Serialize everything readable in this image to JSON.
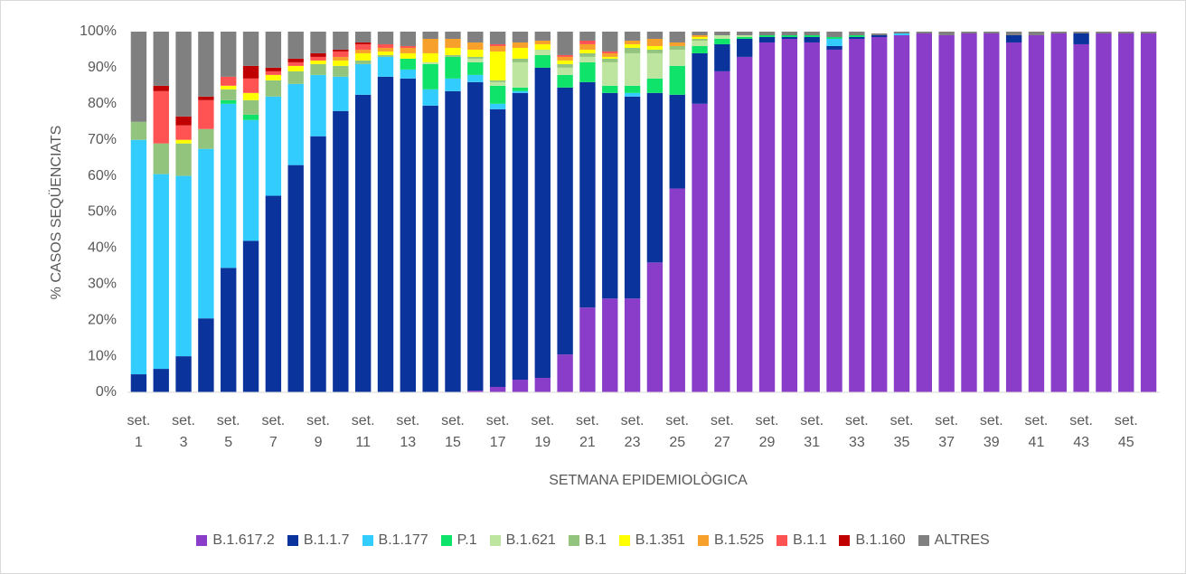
{
  "chart_data": {
    "type": "stacked_bar",
    "x_label": "SETMANA EPIDEMIOLÒGICA",
    "y_label": "% CASOS SEQÜENCIATS",
    "ylim": [
      0,
      100
    ],
    "yticks": [
      {
        "value": 0,
        "label": "0%"
      },
      {
        "value": 10,
        "label": "10%"
      },
      {
        "value": 20,
        "label": "20%"
      },
      {
        "value": 30,
        "label": "30%"
      },
      {
        "value": 40,
        "label": "40%"
      },
      {
        "value": 50,
        "label": "50%"
      },
      {
        "value": 60,
        "label": "60%"
      },
      {
        "value": 70,
        "label": "70%"
      },
      {
        "value": 80,
        "label": "80%"
      },
      {
        "value": 90,
        "label": "90%"
      },
      {
        "value": 100,
        "label": "100%"
      }
    ],
    "grid": false,
    "legend": "bottom",
    "categories": [
      "set. 1",
      null,
      "set. 3",
      null,
      "set. 5",
      null,
      "set. 7",
      null,
      "set. 9",
      null,
      "set. 11",
      null,
      "set. 13",
      null,
      "set. 15",
      null,
      "set. 17",
      null,
      "set. 19",
      null,
      "set. 21",
      null,
      "set. 23",
      null,
      "set. 25",
      null,
      "set. 27",
      null,
      "set. 29",
      null,
      "set. 31",
      null,
      "set. 33",
      null,
      "set. 35",
      null,
      "set. 37",
      null,
      "set. 39",
      null,
      "set. 41",
      null,
      "set. 43",
      null,
      "set. 45",
      null
    ],
    "series": [
      {
        "name": "B.1.617.2",
        "color": "#8a3dc8",
        "values": [
          0,
          0,
          0,
          0,
          0,
          0,
          0,
          0,
          0,
          0,
          0,
          0,
          0,
          0,
          0,
          0.5,
          1.5,
          3.5,
          4,
          10.5,
          23.5,
          26,
          26,
          36,
          56.5,
          80,
          89,
          93,
          97,
          98,
          97,
          95,
          98,
          98.5,
          99,
          99.5,
          99,
          99.5,
          99.5,
          97,
          99,
          99.5,
          96.5,
          99.5,
          99.5,
          99.5
        ]
      },
      {
        "name": "B.1.1.7",
        "color": "#0a349c",
        "values": [
          5,
          6.5,
          10,
          20.5,
          34.5,
          42,
          54.5,
          63,
          71,
          78,
          82.5,
          87.5,
          87,
          79.5,
          83.5,
          85.5,
          77,
          79.5,
          86,
          74,
          62.5,
          57,
          56,
          47,
          26,
          14,
          7.5,
          5,
          1.5,
          0.5,
          1.5,
          1,
          0.5,
          0.5,
          0,
          0,
          0,
          0,
          0,
          2,
          0,
          0,
          3,
          0,
          0,
          0
        ]
      },
      {
        "name": "B.1.177",
        "color": "#33ccff",
        "values": [
          65,
          54,
          50,
          47,
          45.5,
          33.5,
          27.5,
          22.5,
          17,
          9.5,
          8.5,
          5.5,
          2.5,
          4.5,
          3.5,
          2,
          1.5,
          0.5,
          0,
          0,
          0,
          0,
          1,
          0,
          0,
          0,
          0,
          0,
          0,
          0,
          0,
          2,
          0,
          0,
          0.5,
          0,
          0,
          0,
          0,
          0,
          0,
          0,
          0,
          0,
          0,
          0
        ]
      },
      {
        "name": "P.1",
        "color": "#0fe36a",
        "values": [
          0,
          0,
          0,
          0,
          1,
          1.5,
          0,
          0,
          0,
          0,
          0,
          0,
          3,
          7,
          6,
          3.5,
          5,
          1,
          3.5,
          3.5,
          5.5,
          2,
          2,
          4,
          8,
          2,
          1.5,
          0.5,
          0.5,
          0.5,
          0.5,
          0.5,
          0.5,
          0,
          0,
          0,
          0,
          0,
          0,
          0,
          0,
          0,
          0,
          0,
          0,
          0
        ]
      },
      {
        "name": "B.1.621",
        "color": "#bde5a0",
        "values": [
          0,
          0,
          0,
          0,
          0,
          0,
          0,
          0,
          0,
          0,
          0,
          0,
          0,
          0.5,
          0,
          1,
          1,
          7,
          1.5,
          2,
          1.5,
          6.5,
          9,
          7,
          4.5,
          1.5,
          1,
          0.5,
          0,
          0,
          0,
          0,
          0,
          0,
          0,
          0,
          0,
          0,
          0,
          0,
          0,
          0,
          0,
          0,
          0,
          0
        ]
      },
      {
        "name": "B.1",
        "color": "#93c47d",
        "values": [
          5,
          8.5,
          9,
          5.5,
          3,
          4,
          4.5,
          3.5,
          3,
          3,
          1,
          0.5,
          0,
          0,
          0.5,
          0.5,
          0.5,
          1,
          0,
          1,
          1,
          1,
          1.5,
          1,
          1,
          0.5,
          0,
          0,
          0,
          0,
          0,
          0,
          0,
          0,
          0,
          0,
          0,
          0,
          0,
          0,
          0,
          0,
          0,
          0,
          0,
          0
        ]
      },
      {
        "name": "B.1.351",
        "color": "#ffff00",
        "values": [
          0,
          0,
          1,
          0,
          1,
          2,
          1.5,
          1.5,
          1,
          1.5,
          2,
          1,
          1.5,
          2.5,
          2,
          2,
          8,
          3,
          1.5,
          1,
          1,
          0.5,
          1,
          1,
          0,
          0.5,
          0,
          0,
          0,
          0,
          0,
          0,
          0,
          0,
          0,
          0,
          0,
          0,
          0,
          0,
          0,
          0,
          0,
          0,
          0,
          0
        ]
      },
      {
        "name": "B.1.525",
        "color": "#f8a02c",
        "values": [
          0,
          0,
          0,
          0,
          0,
          0,
          0,
          0,
          0,
          1,
          1,
          1,
          1.5,
          4,
          2.5,
          2,
          1.5,
          1.5,
          1,
          1,
          1.5,
          1,
          1,
          2,
          1,
          0.5,
          0,
          0,
          0,
          0,
          0,
          0,
          0,
          0,
          0,
          0,
          0,
          0,
          0,
          0,
          0,
          0,
          0,
          0,
          0,
          0
        ]
      },
      {
        "name": "B.1.1",
        "color": "#ff5252",
        "values": [
          0,
          14.5,
          4,
          8,
          2.5,
          4,
          1,
          1,
          1,
          1.5,
          1.5,
          1,
          0.5,
          0,
          0,
          0,
          0.5,
          0,
          0,
          0.5,
          1,
          0.5,
          0,
          0,
          0,
          0,
          0,
          0,
          0,
          0,
          0,
          0,
          0,
          0,
          0,
          0,
          0,
          0,
          0,
          0,
          0,
          0,
          0,
          0,
          0,
          0
        ]
      },
      {
        "name": "B.1.160",
        "color": "#c00000",
        "values": [
          0,
          1.5,
          2.5,
          1,
          0,
          3.5,
          1,
          1,
          1,
          0.5,
          0.5,
          0,
          0,
          0,
          0,
          0,
          0,
          0,
          0,
          0,
          0,
          0,
          0,
          0,
          0,
          0,
          0,
          0,
          0,
          0,
          0,
          0,
          0,
          0,
          0,
          0,
          0,
          0,
          0,
          0,
          0,
          0,
          0,
          0,
          0,
          0
        ]
      },
      {
        "name": "ALTRES",
        "color": "#808080",
        "values": [
          25,
          15,
          23.5,
          18,
          12.5,
          9.5,
          10,
          7.5,
          6,
          5,
          3,
          3.5,
          4,
          2,
          2,
          3,
          3.5,
          3,
          2.5,
          6.5,
          2.5,
          5.5,
          2.5,
          2,
          3,
          1,
          1,
          1,
          1,
          1,
          1,
          1.5,
          1,
          0.5,
          0.5,
          0.5,
          1,
          0.5,
          0.5,
          1,
          1,
          0.5,
          0.5,
          0.5,
          0.5,
          0.5
        ]
      }
    ]
  }
}
